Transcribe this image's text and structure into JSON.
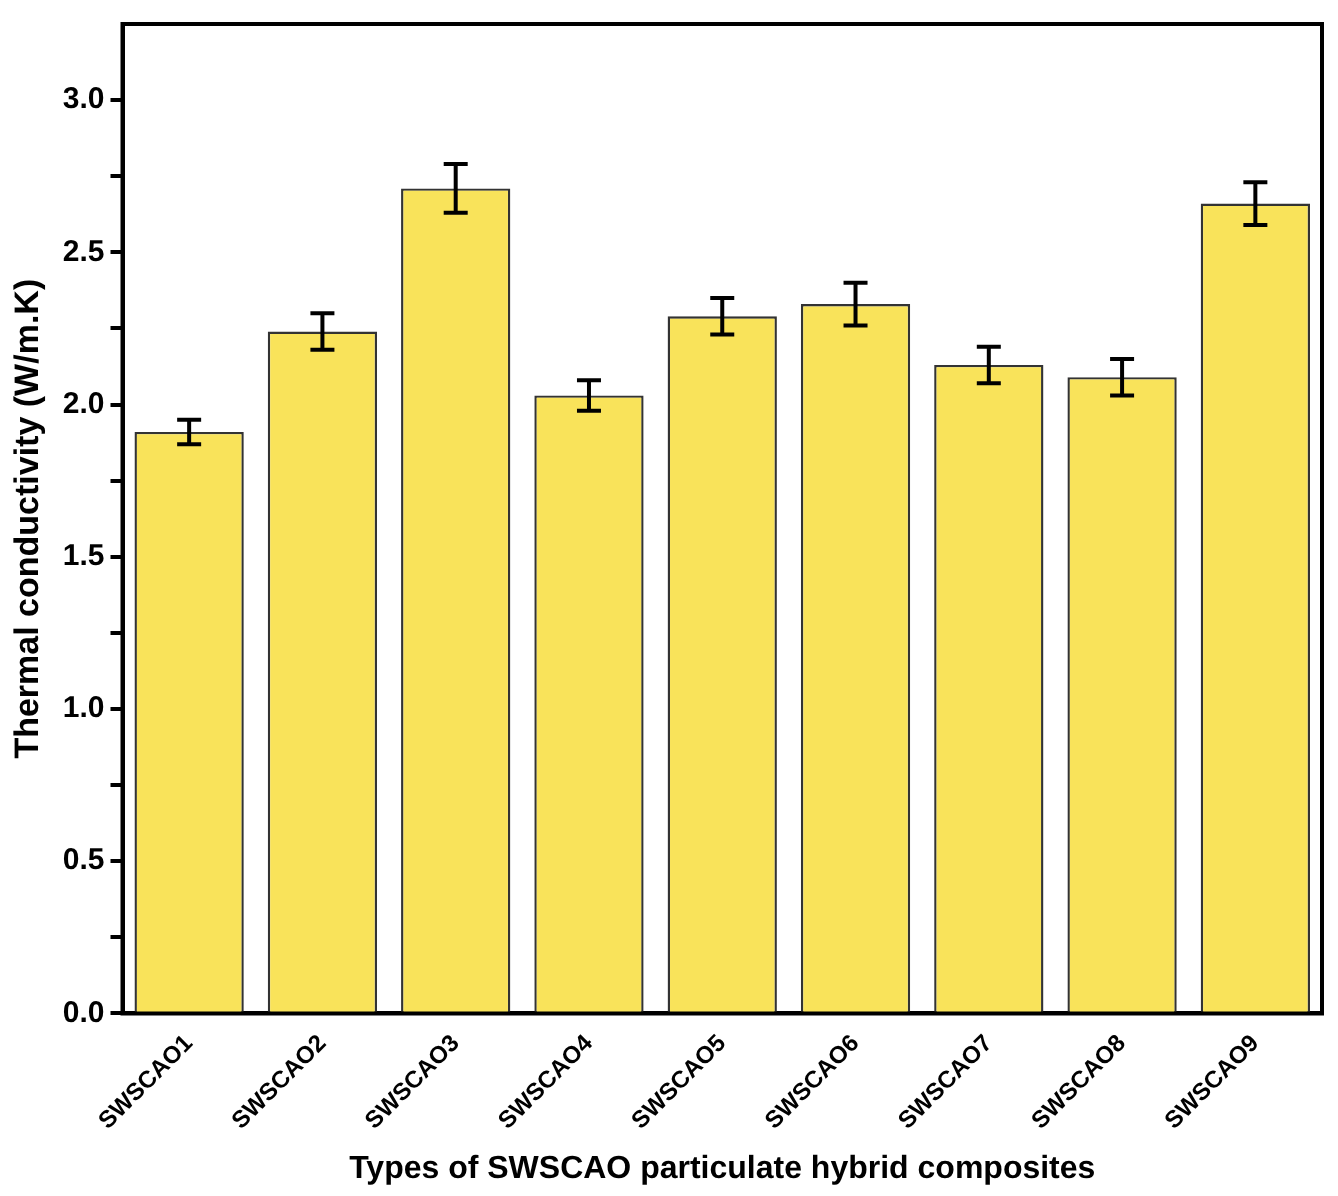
{
  "chart_data": {
    "type": "bar",
    "xlabel": "Types of SWSCAO particulate hybrid composites",
    "ylabel": "Thermal conductivity (W/m.K)",
    "categories": [
      "SWSCAO1",
      "SWSCAO2",
      "SWSCAO3",
      "SWSCAO4",
      "SWSCAO5",
      "SWSCAO6",
      "SWSCAO7",
      "SWSCAO8",
      "SWSCAO9"
    ],
    "values": [
      1.91,
      2.24,
      2.71,
      2.03,
      2.29,
      2.33,
      2.13,
      2.09,
      2.66
    ],
    "errors": [
      0.04,
      0.06,
      0.08,
      0.05,
      0.06,
      0.07,
      0.06,
      0.06,
      0.07
    ],
    "color": "#f9e35a",
    "ylim": [
      0,
      3.25
    ],
    "yticks": [
      {
        "value": 0,
        "label": "0.0"
      },
      {
        "value": 0.25,
        "label": null
      },
      0.5,
      {
        "value": 0.75,
        "label": null
      },
      {
        "value": 1,
        "label": "1.0"
      },
      {
        "value": 1.25,
        "label": null
      },
      1.5,
      {
        "value": 1.75,
        "label": null
      },
      {
        "value": 2,
        "label": "2.0"
      },
      {
        "value": 2.25,
        "label": null
      },
      2.5,
      {
        "value": 2.75,
        "label": null
      },
      {
        "value": 3,
        "label": "3.0"
      }
    ],
    "grid": false,
    "legend": false
  }
}
